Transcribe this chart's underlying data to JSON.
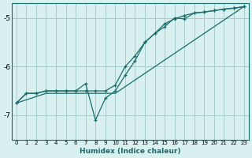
{
  "xlabel": "Humidex (Indice chaleur)",
  "bg_color": "#d8f0f0",
  "grid_color": "#a8cccc",
  "line_color": "#1a6b6b",
  "xlim": [
    -0.5,
    23.5
  ],
  "ylim": [
    -7.5,
    -4.7
  ],
  "yticks": [
    -7,
    -6,
    -5
  ],
  "xticks": [
    0,
    1,
    2,
    3,
    4,
    5,
    6,
    7,
    8,
    9,
    10,
    11,
    12,
    13,
    14,
    15,
    16,
    17,
    18,
    19,
    20,
    21,
    22,
    23
  ],
  "line1_x": [
    0,
    1,
    2,
    3,
    4,
    5,
    6,
    7,
    8,
    9,
    10,
    11,
    12,
    13,
    14,
    15,
    16,
    17,
    18,
    19,
    20,
    21,
    22,
    23
  ],
  "line1_y": [
    -6.75,
    -6.55,
    -6.55,
    -6.5,
    -6.5,
    -6.5,
    -6.5,
    -6.5,
    -6.5,
    -6.5,
    -6.38,
    -6.0,
    -5.78,
    -5.5,
    -5.32,
    -5.12,
    -5.02,
    -4.95,
    -4.9,
    -4.88,
    -4.85,
    -4.82,
    -4.8,
    -4.77
  ],
  "line2_x": [
    0,
    1,
    2,
    3,
    4,
    5,
    6,
    7,
    8,
    9,
    10,
    11,
    12,
    13,
    14,
    15,
    16,
    17,
    18,
    19,
    20,
    21,
    22,
    23
  ],
  "line2_y": [
    -6.75,
    -6.55,
    -6.55,
    -6.5,
    -6.5,
    -6.5,
    -6.5,
    -6.35,
    -7.1,
    -6.65,
    -6.5,
    -6.18,
    -5.88,
    -5.5,
    -5.32,
    -5.18,
    -5.0,
    -5.02,
    -4.9,
    -4.88,
    -4.85,
    -4.82,
    -4.8,
    -4.77
  ],
  "line3_x": [
    0,
    3,
    10,
    23
  ],
  "line3_y": [
    -6.75,
    -6.55,
    -6.55,
    -4.77
  ]
}
